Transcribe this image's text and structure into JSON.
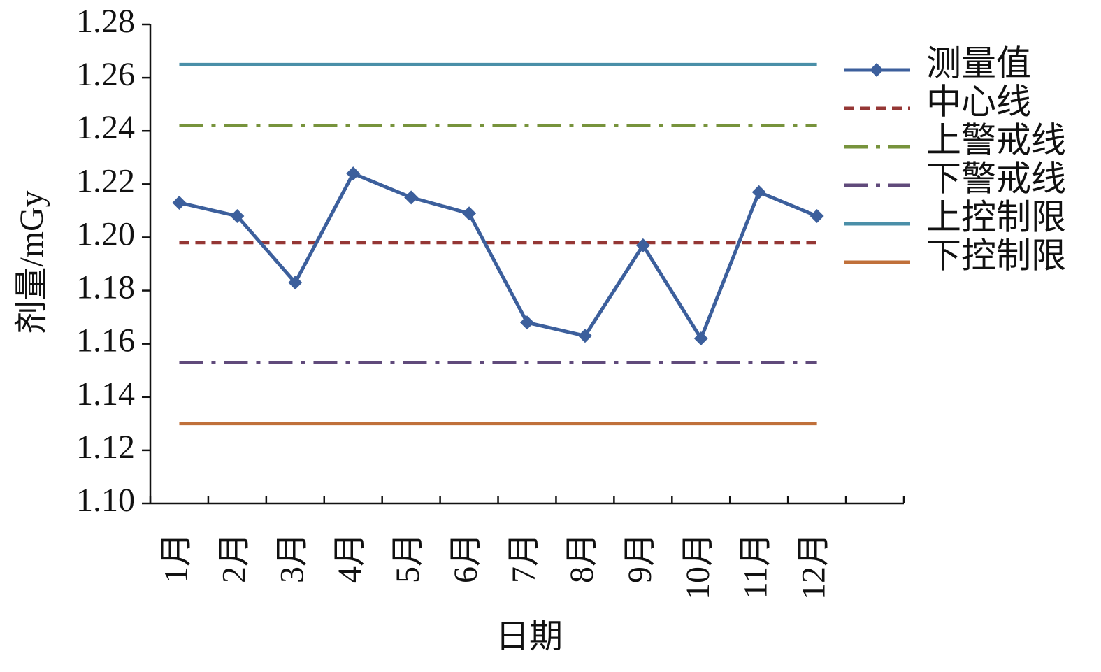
{
  "chart_data": {
    "type": "line",
    "x_label": "日期",
    "y_label": "剂量/mGy",
    "categories": [
      "1月",
      "2月",
      "3月",
      "4月",
      "5月",
      "6月",
      "7月",
      "8月",
      "9月",
      "10月",
      "11月",
      "12月",
      null
    ],
    "ylim": [
      1.1,
      1.28
    ],
    "yticks": [
      {
        "value": 1.1,
        "label": "1.10"
      },
      1.12,
      1.14,
      1.16,
      1.18,
      {
        "value": 1.2,
        "label": "1.20"
      },
      1.22,
      1.24,
      1.26,
      1.28
    ],
    "series": [
      {
        "name": "测量值",
        "color": "#3c5f9c",
        "dash": "solid",
        "marker": "diamond",
        "values": [
          1.213,
          1.208,
          1.183,
          1.224,
          1.215,
          1.209,
          1.168,
          1.163,
          1.197,
          1.162,
          1.217,
          1.208,
          null
        ]
      },
      {
        "name": "中心线",
        "color": "#953735",
        "dash": "dash",
        "values": [
          1.198,
          1.198,
          1.198,
          1.198,
          1.198,
          1.198,
          1.198,
          1.198,
          1.198,
          1.198,
          1.198,
          1.198,
          null
        ]
      },
      {
        "name": "上警戒线",
        "color": "#77933c",
        "dash": "dashdot",
        "values": [
          1.242,
          1.242,
          1.242,
          1.242,
          1.242,
          1.242,
          1.242,
          1.242,
          1.242,
          1.242,
          1.242,
          1.242,
          null
        ]
      },
      {
        "name": "下警戒线",
        "color": "#604a7b",
        "dash": "dashdot",
        "values": [
          1.153,
          1.153,
          1.153,
          1.153,
          1.153,
          1.153,
          1.153,
          1.153,
          1.153,
          1.153,
          1.153,
          1.153,
          null
        ]
      },
      {
        "name": "上控制限",
        "color": "#4a8fa8",
        "dash": "solid",
        "values": [
          1.265,
          1.265,
          1.265,
          1.265,
          1.265,
          1.265,
          1.265,
          1.265,
          1.265,
          1.265,
          1.265,
          1.265,
          null
        ]
      },
      {
        "name": "下控制限",
        "color": "#c0703a",
        "dash": "solid",
        "values": [
          1.13,
          1.13,
          1.13,
          1.13,
          1.13,
          1.13,
          1.13,
          1.13,
          1.13,
          1.13,
          1.13,
          1.13,
          null
        ]
      }
    ],
    "legend": "right"
  }
}
